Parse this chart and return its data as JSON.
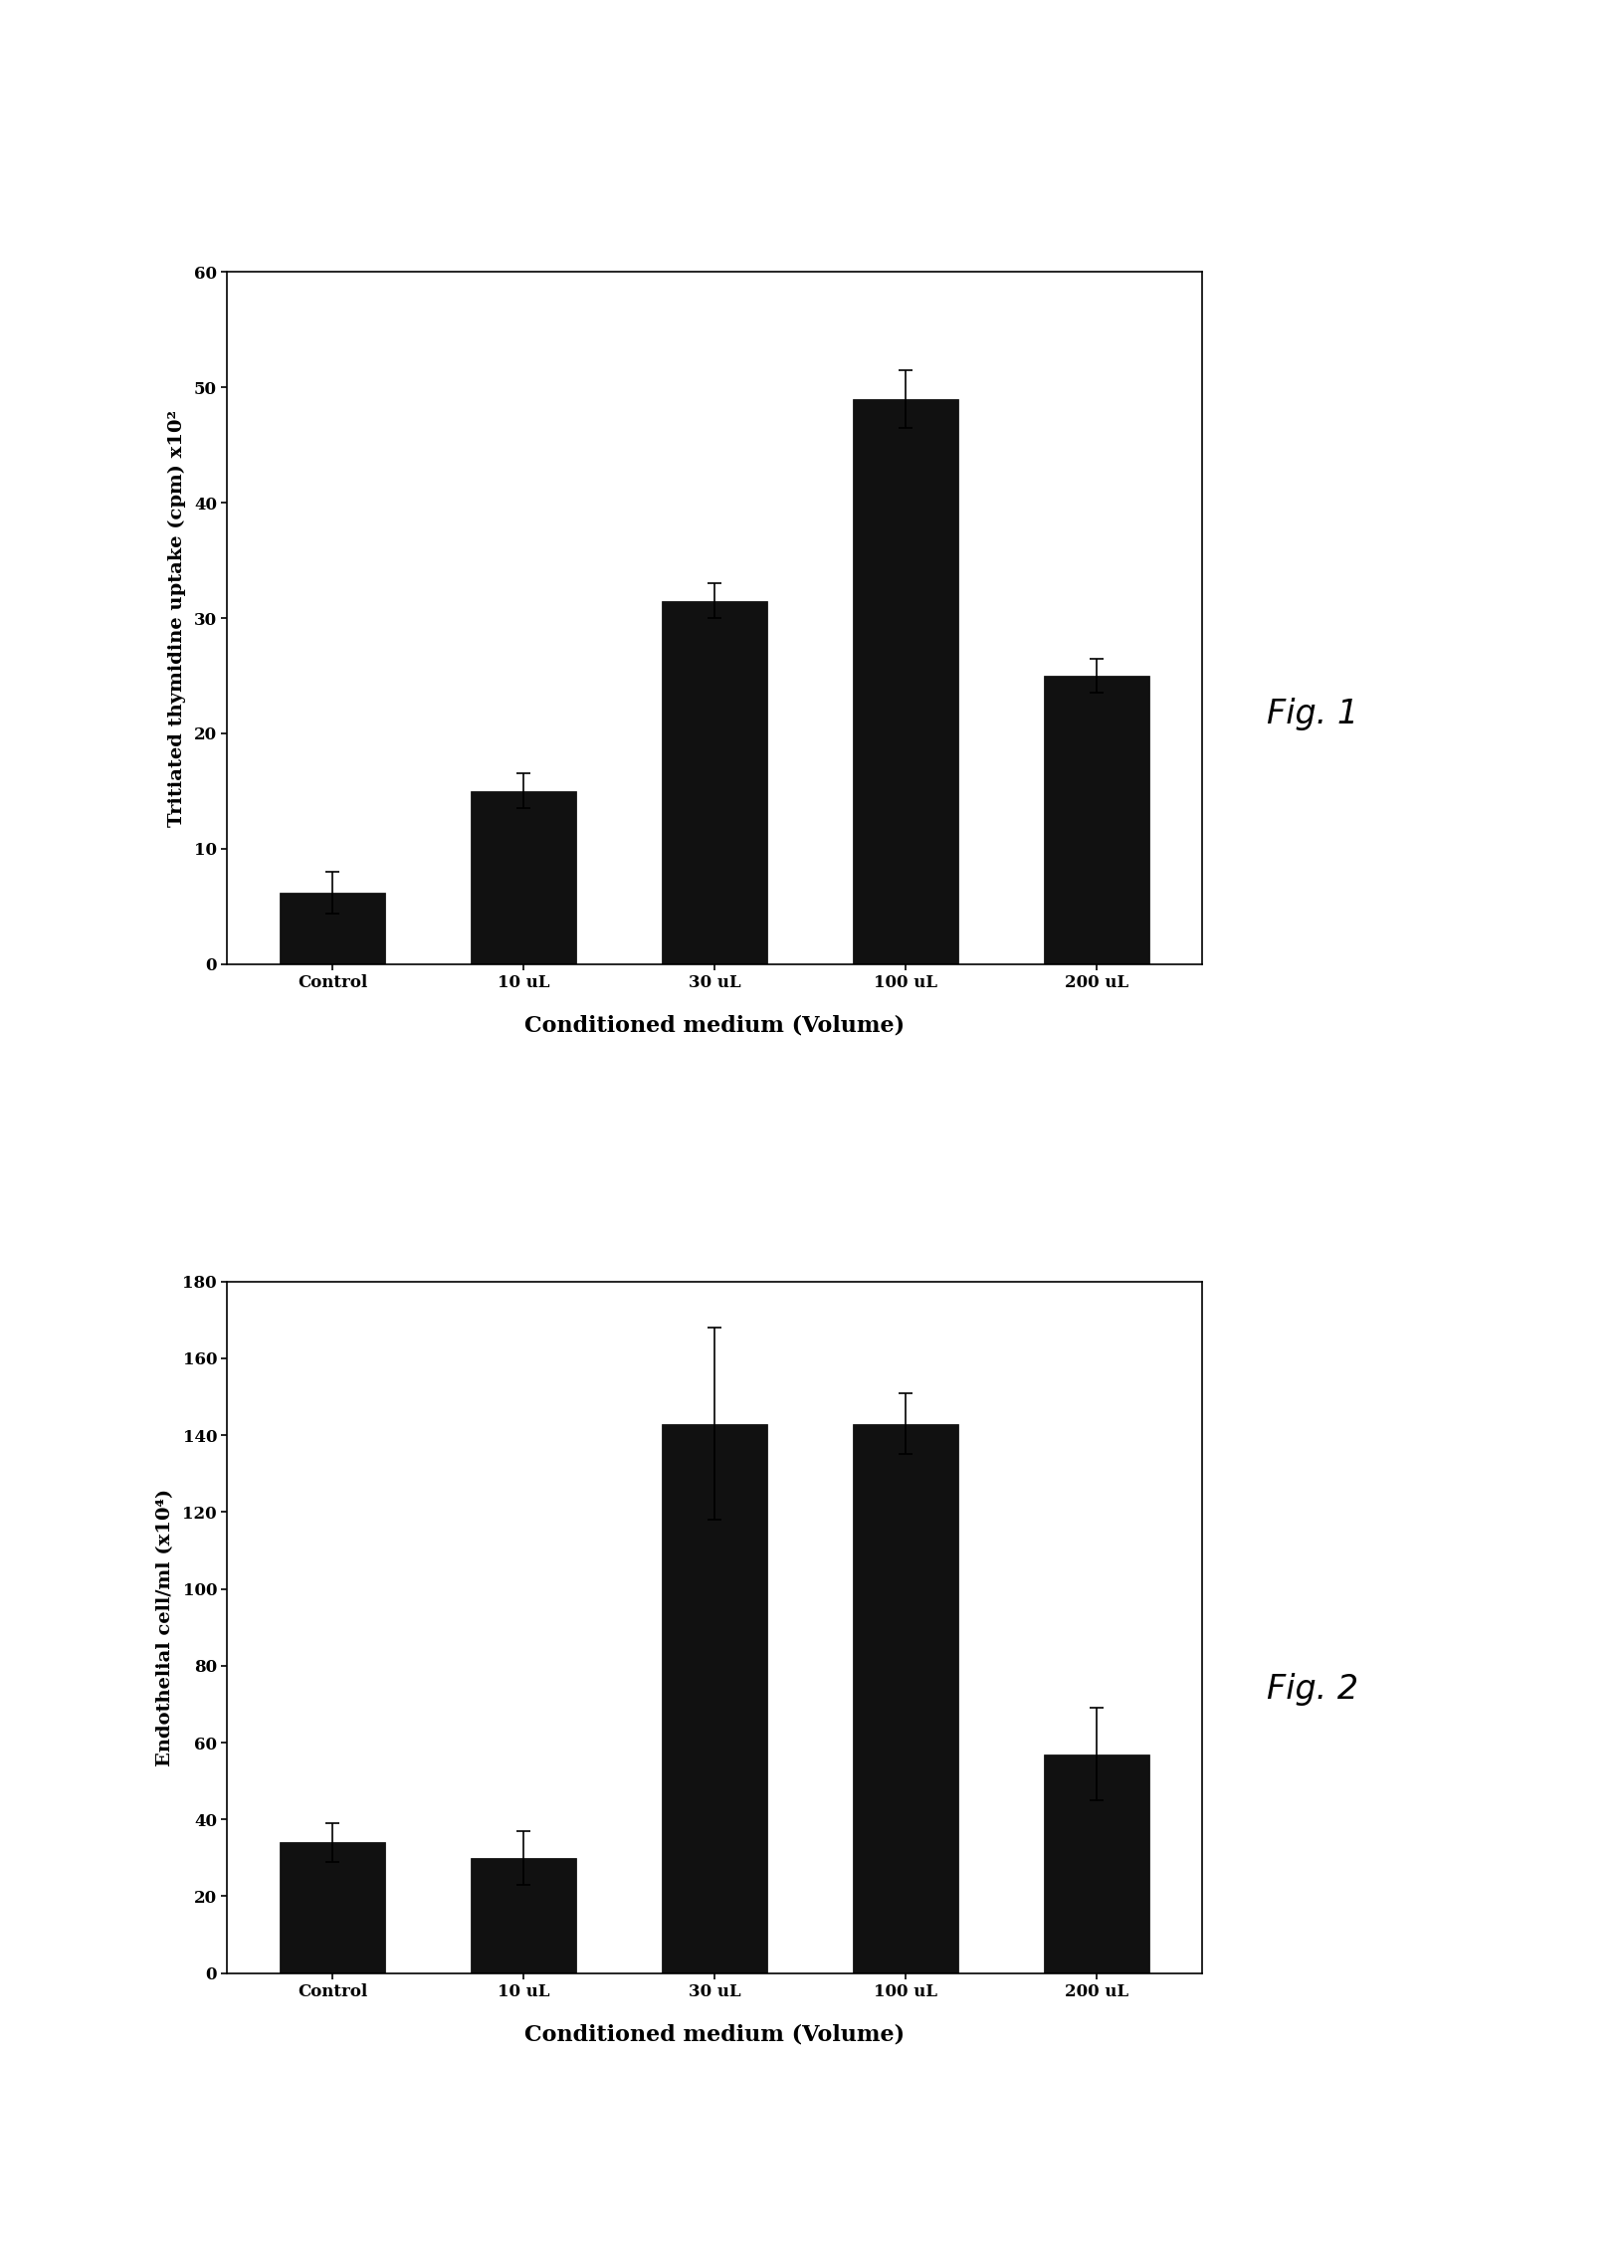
{
  "fig1": {
    "categories": [
      "Control",
      "10 uL",
      "30 uL",
      "100 uL",
      "200 uL"
    ],
    "values": [
      6.2,
      15.0,
      31.5,
      49.0,
      25.0
    ],
    "errors": [
      1.8,
      1.5,
      1.5,
      2.5,
      1.5
    ],
    "ylabel": "Tritiated thymidine uptake (cpm) x10²",
    "xlabel": "Conditioned medium (Volume)",
    "ylim": [
      0,
      60
    ],
    "yticks": [
      0,
      10,
      20,
      30,
      40,
      50,
      60
    ],
    "bar_color": "#111111",
    "fig_label": "Fig. 1"
  },
  "fig2": {
    "categories": [
      "Control",
      "10 uL",
      "30 uL",
      "100 uL",
      "200 uL"
    ],
    "values": [
      34.0,
      30.0,
      143.0,
      143.0,
      57.0
    ],
    "errors": [
      5.0,
      7.0,
      25.0,
      8.0,
      12.0
    ],
    "ylabel": "Endothelial cell/ml (x10⁴)",
    "xlabel": "Conditioned medium (Volume)",
    "ylim": [
      0,
      180
    ],
    "yticks": [
      0,
      20,
      40,
      60,
      80,
      100,
      120,
      140,
      160,
      180
    ],
    "bar_color": "#111111",
    "fig_label": "Fig. 2"
  },
  "background_color": "#ffffff",
  "tick_fontsize": 12,
  "label_fontsize": 14,
  "xlabel_fontsize": 16
}
